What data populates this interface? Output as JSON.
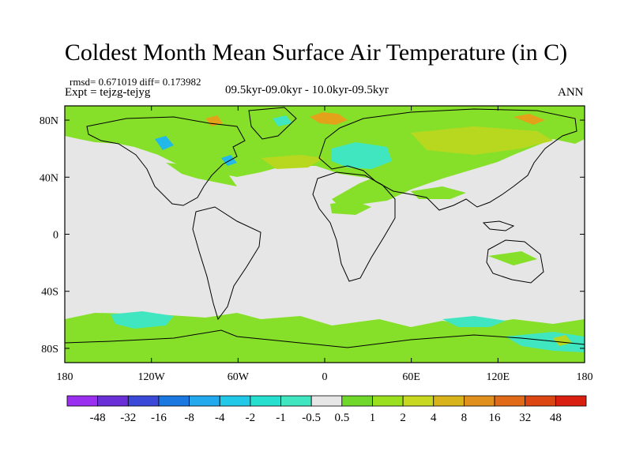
{
  "title": "Coldest Month Mean Surface Air Temperature (in C)",
  "stats": "rmsd= 0.671019 diff= 0.173982",
  "experiment": "Expt = tejzg-tejyg",
  "period": "09.5kyr-09.0kyr - 10.0kyr-09.5kyr",
  "season": "ANN",
  "x_ticks": [
    "180",
    "120W",
    "60W",
    "0",
    "60E",
    "120E",
    "180"
  ],
  "y_ticks": [
    "80N",
    "40N",
    "0",
    "40S",
    "80S"
  ],
  "colorbar": {
    "labels": [
      "-48",
      "-32",
      "-16",
      "-8",
      "-4",
      "-2",
      "-1",
      "-0.5",
      "0.5",
      "1",
      "2",
      "4",
      "8",
      "16",
      "32",
      "48"
    ],
    "colors": [
      "#9b2ff0",
      "#6a2fd6",
      "#3a49d8",
      "#1b78e0",
      "#22a8ec",
      "#22c8e8",
      "#27dfcf",
      "#3fe6bf",
      "#e6e6e6",
      "#6fd82a",
      "#9be01e",
      "#c8d81e",
      "#d8b41a",
      "#e0901c",
      "#e06a18",
      "#dc4612",
      "#d92010"
    ]
  },
  "colors": {
    "background_field": "#e6e6e6",
    "positive_small": "#86e02a",
    "positive_mid": "#b7d81e",
    "positive_large": "#e3a21a",
    "negative_small": "#3fe6bf",
    "negative_mid": "#22b8e8"
  },
  "chart_data": {
    "type": "map",
    "title": "Coldest Month Mean Surface Air Temperature (in C)",
    "variable": "Coldest Month Mean Surface Air Temperature",
    "units": "C",
    "xlim": [
      -180,
      180
    ],
    "ylim": [
      -90,
      90
    ],
    "x_tick_values": [
      -180,
      -120,
      -60,
      0,
      60,
      120,
      180
    ],
    "y_tick_values": [
      80,
      40,
      0,
      -40,
      -80
    ],
    "contour_levels": [
      -48,
      -32,
      -16,
      -8,
      -4,
      -2,
      -1,
      -0.5,
      0.5,
      1,
      2,
      4,
      8,
      16,
      32,
      48
    ]
  }
}
